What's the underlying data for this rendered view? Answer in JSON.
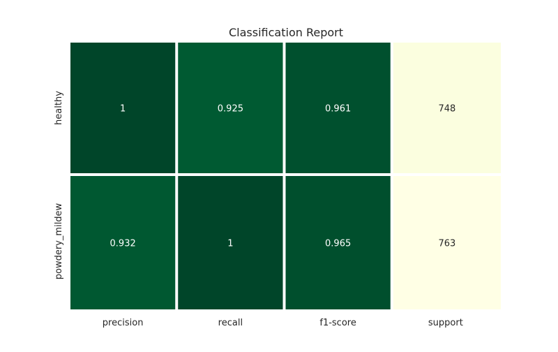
{
  "chart_data": {
    "type": "heatmap",
    "title": "Classification Report",
    "rows": [
      "healthy",
      "powdery_mildew"
    ],
    "columns": [
      "precision",
      "recall",
      "f1-score",
      "support"
    ],
    "cells": [
      [
        "1",
        "0.925",
        "0.961",
        "748"
      ],
      [
        "0.932",
        "1",
        "0.965",
        "763"
      ]
    ],
    "values": [
      [
        1,
        0.925,
        0.961,
        748
      ],
      [
        0.932,
        1,
        0.965,
        763
      ]
    ],
    "colormap": "YlGn",
    "colors": {
      "dark": "#004529",
      "mid": "#005a32",
      "light": "#ffffe5",
      "text_dark_bg": "#ffffff",
      "text_light_bg": "#262626",
      "gap": "#ffffff"
    }
  }
}
